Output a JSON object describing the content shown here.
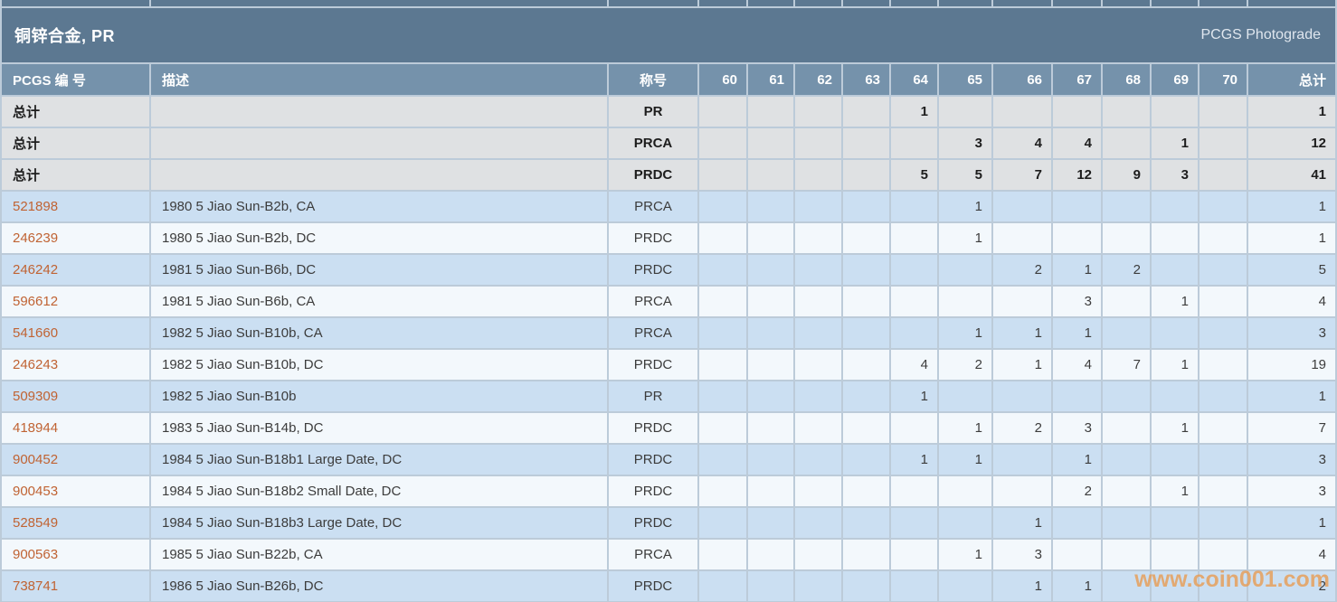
{
  "header": {
    "title": "铜锌合金, PR",
    "right_label": "PCGS Photograde"
  },
  "table": {
    "columns": [
      "PCGS 编 号",
      "描述",
      "称号",
      "60",
      "61",
      "62",
      "63",
      "64",
      "65",
      "66",
      "67",
      "68",
      "69",
      "70",
      "总计"
    ],
    "grade_keys": [
      "60",
      "61",
      "62",
      "63",
      "64",
      "65",
      "66",
      "67",
      "68",
      "69",
      "70"
    ],
    "summary_rows": [
      {
        "label": "总计",
        "description": "",
        "designation": "PR",
        "grades": {
          "64": "1"
        },
        "total": "1"
      },
      {
        "label": "总计",
        "description": "",
        "designation": "PRCA",
        "grades": {
          "65": "3",
          "66": "4",
          "67": "4",
          "69": "1"
        },
        "total": "12"
      },
      {
        "label": "总计",
        "description": "",
        "designation": "PRDC",
        "grades": {
          "64": "5",
          "65": "5",
          "66": "7",
          "67": "12",
          "68": "9",
          "69": "3"
        },
        "total": "41"
      }
    ],
    "rows": [
      {
        "pcgs_no": "521898",
        "description": "1980 5 Jiao Sun-B2b, CA",
        "designation": "PRCA",
        "grades": {
          "65": "1"
        },
        "total": "1"
      },
      {
        "pcgs_no": "246239",
        "description": "1980 5 Jiao Sun-B2b, DC",
        "designation": "PRDC",
        "grades": {
          "65": "1"
        },
        "total": "1"
      },
      {
        "pcgs_no": "246242",
        "description": "1981 5 Jiao Sun-B6b, DC",
        "designation": "PRDC",
        "grades": {
          "66": "2",
          "67": "1",
          "68": "2"
        },
        "total": "5"
      },
      {
        "pcgs_no": "596612",
        "description": "1981 5 Jiao Sun-B6b, CA",
        "designation": "PRCA",
        "grades": {
          "67": "3",
          "69": "1"
        },
        "total": "4"
      },
      {
        "pcgs_no": "541660",
        "description": "1982 5 Jiao Sun-B10b, CA",
        "designation": "PRCA",
        "grades": {
          "65": "1",
          "66": "1",
          "67": "1"
        },
        "total": "3"
      },
      {
        "pcgs_no": "246243",
        "description": "1982 5 Jiao Sun-B10b, DC",
        "designation": "PRDC",
        "grades": {
          "64": "4",
          "65": "2",
          "66": "1",
          "67": "4",
          "68": "7",
          "69": "1"
        },
        "total": "19"
      },
      {
        "pcgs_no": "509309",
        "description": "1982 5 Jiao Sun-B10b",
        "designation": "PR",
        "grades": {
          "64": "1"
        },
        "total": "1"
      },
      {
        "pcgs_no": "418944",
        "description": "1983 5 Jiao Sun-B14b, DC",
        "designation": "PRDC",
        "grades": {
          "65": "1",
          "66": "2",
          "67": "3",
          "69": "1"
        },
        "total": "7"
      },
      {
        "pcgs_no": "900452",
        "description": "1984 5 Jiao Sun-B18b1 Large Date, DC",
        "designation": "PRDC",
        "grades": {
          "64": "1",
          "65": "1",
          "67": "1"
        },
        "total": "3"
      },
      {
        "pcgs_no": "900453",
        "description": "1984 5 Jiao Sun-B18b2 Small Date, DC",
        "designation": "PRDC",
        "grades": {
          "67": "2",
          "69": "1"
        },
        "total": "3"
      },
      {
        "pcgs_no": "528549",
        "description": "1984 5 Jiao Sun-B18b3 Large Date, DC",
        "designation": "PRDC",
        "grades": {
          "66": "1"
        },
        "total": "1"
      },
      {
        "pcgs_no": "900563",
        "description": "1985 5 Jiao Sun-B22b, CA",
        "designation": "PRCA",
        "grades": {
          "65": "1",
          "66": "3"
        },
        "total": "4"
      },
      {
        "pcgs_no": "738741",
        "description": "1986 5 Jiao Sun-B26b, DC",
        "designation": "PRDC",
        "grades": {
          "66": "1",
          "67": "1"
        },
        "total": "2"
      }
    ]
  },
  "watermark": {
    "text": "www.coin001.com"
  },
  "colors": {
    "title_bar": "#5c7891",
    "header_row": "#7592ab",
    "summary_row": "#dfe1e3",
    "row_blue": "#cbdff2",
    "row_white": "#f3f8fc",
    "link_orange": "#c06333",
    "grid": "#bccbd9",
    "watermark": "#e99a4f"
  }
}
